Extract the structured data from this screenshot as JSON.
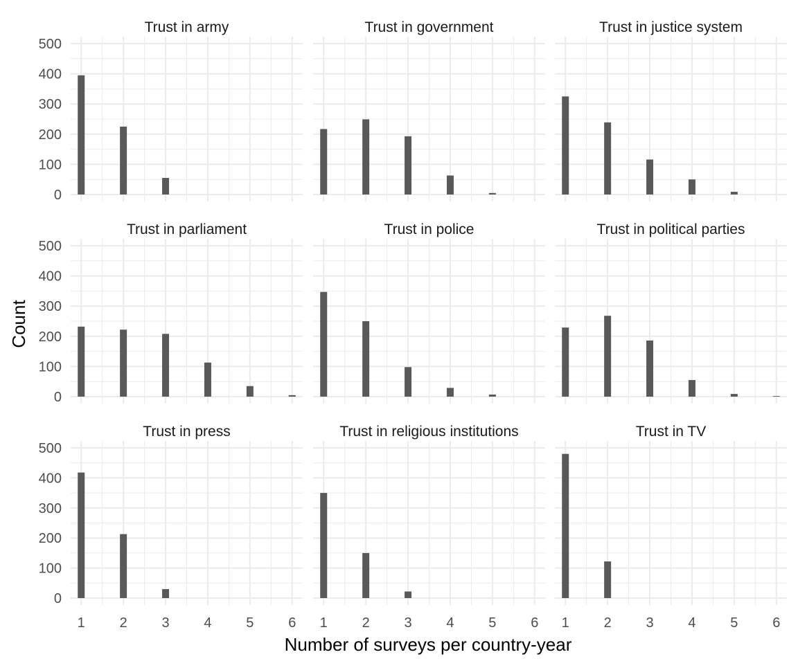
{
  "chart_data": {
    "type": "bar",
    "xlabel": "Number of surveys per country-year",
    "ylabel": "Count",
    "xlim": [
      1,
      6
    ],
    "ylim": [
      0,
      500
    ],
    "x_ticks": [
      "1",
      "2",
      "3",
      "4",
      "5",
      "6"
    ],
    "y_ticks": [
      "0",
      "100",
      "200",
      "300",
      "400",
      "500"
    ],
    "grid": true,
    "bar_color": "#595959",
    "grid_color": "#ebebeb",
    "panels": [
      {
        "title": "Trust in army",
        "x": [
          1,
          2,
          3
        ],
        "values": [
          395,
          225,
          55
        ]
      },
      {
        "title": "Trust in government",
        "x": [
          1,
          2,
          3,
          4,
          5
        ],
        "values": [
          217,
          249,
          193,
          63,
          5
        ]
      },
      {
        "title": "Trust in justice system",
        "x": [
          1,
          2,
          3,
          4,
          5
        ],
        "values": [
          325,
          239,
          116,
          50,
          9
        ]
      },
      {
        "title": "Trust in parliament",
        "x": [
          1,
          2,
          3,
          4,
          5,
          6
        ],
        "values": [
          232,
          222,
          208,
          113,
          35,
          5
        ]
      },
      {
        "title": "Trust in police",
        "x": [
          1,
          2,
          3,
          4,
          5
        ],
        "values": [
          347,
          250,
          98,
          29,
          7
        ]
      },
      {
        "title": "Trust in political parties",
        "x": [
          1,
          2,
          3,
          4,
          5,
          6
        ],
        "values": [
          229,
          268,
          186,
          55,
          9,
          2
        ]
      },
      {
        "title": "Trust in press",
        "x": [
          1,
          2,
          3
        ],
        "values": [
          418,
          213,
          30
        ]
      },
      {
        "title": "Trust in religious institutions",
        "x": [
          1,
          2,
          3
        ],
        "values": [
          350,
          150,
          22
        ]
      },
      {
        "title": "Trust in TV",
        "x": [
          1,
          2
        ],
        "values": [
          480,
          122
        ]
      }
    ]
  }
}
